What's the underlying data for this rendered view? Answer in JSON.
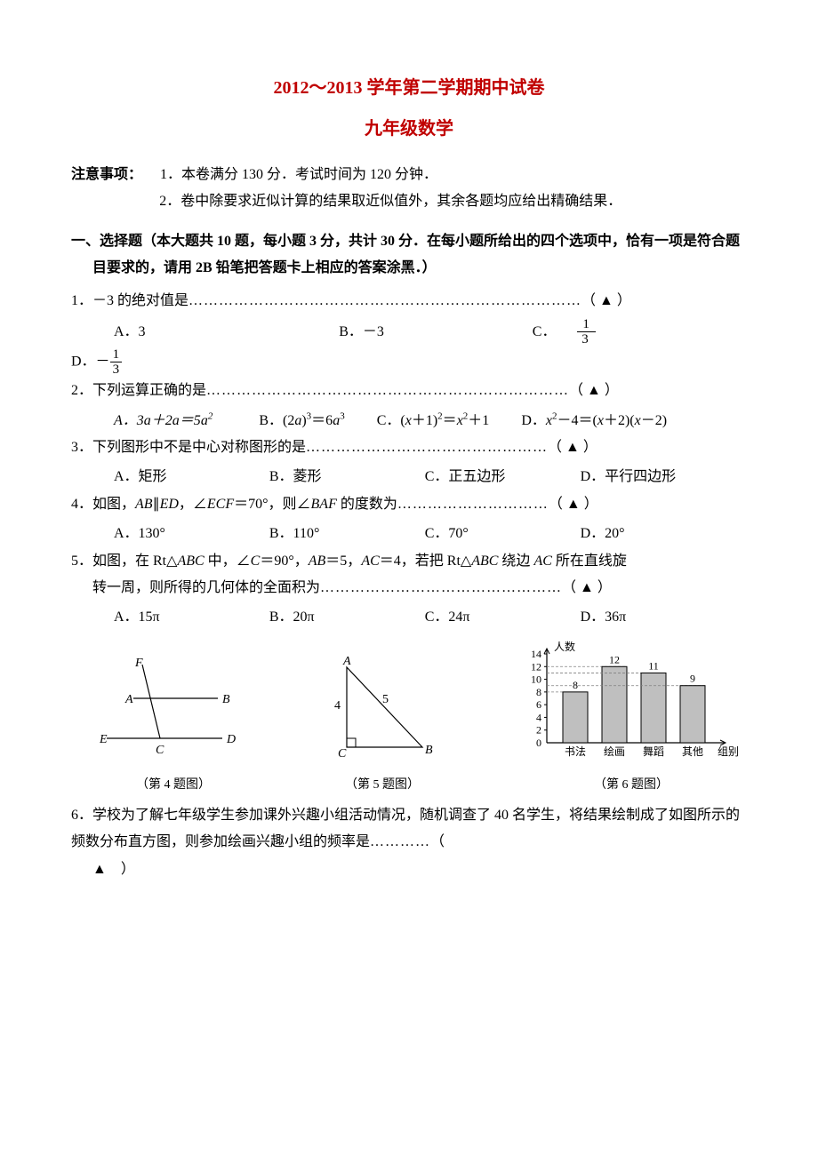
{
  "header": {
    "title1": "2012～2013 学年第二学期期中试卷",
    "title2": "九年级数学"
  },
  "notice": {
    "label": "注意事项：",
    "line1": "1．本卷满分 130 分．考试时间为 120 分钟．",
    "line2": "2．卷中除要求近似计算的结果取近似值外，其余各题均应给出精确结果．"
  },
  "section1": {
    "header": "一、选择题（本大题共 10 题，每小题 3 分，共计 30 分．在每小题所给出的四个选项中，恰有一项是符合题目要求的，请用 2B 铅笔把答题卡上相应的答案涂黑．）"
  },
  "q1": {
    "stem_pre": "1．－3 的绝对值是",
    "dots": "……………………………………………………………………",
    "tail": "（  ▲  ）",
    "optA": "A．3",
    "optB": "B．－3",
    "optC_pre": "C．",
    "optD_pre": "D．－"
  },
  "q2": {
    "stem_pre": "2．下列运算正确的是",
    "dots": "………………………………………………………………",
    "tail": "（  ▲  ）",
    "line2": "A．3a＋2a＝5a²　　　B．(2a)³＝6a³　　C．(x＋1)²＝x²＋1　　D．x²－4＝(x＋2)(x－2)"
  },
  "q3": {
    "stem_pre": "3．下列图形中不是中心对称图形的是",
    "dots": "…………………………………………",
    "tail": "（  ▲  ）",
    "optA": "A．矩形",
    "optB": "B．菱形",
    "optC": "C．正五边形",
    "optD": "D．平行四边形"
  },
  "q4": {
    "stem": "4．如图，AB∥ED，∠ECF＝70°，则∠BAF 的度数为",
    "dots": "…………………………",
    "tail": "（  ▲  ）",
    "optA": "A．130°",
    "optB": "B．110°",
    "optC": "C．70°",
    "optD": "D．20°"
  },
  "q5": {
    "stem": "5．如图，在 Rt△ABC 中，∠C＝90°，AB＝5，AC＝4，若把 Rt△ABC 绕边 AC 所在直线旋转一周，则所得的几何体的全面积为",
    "dots": "…………………………………………",
    "tail": "（  ▲  ）",
    "optA": "A．15π",
    "optB": "B．20π",
    "optC": "C．24π",
    "optD": "D．36π"
  },
  "figures": {
    "cap4": "（第 4 题图）",
    "cap5": "（第 5 题图）",
    "cap6": "（第 6 题图）",
    "fig4_labels": {
      "F": "F",
      "A": "A",
      "B": "B",
      "E": "E",
      "C": "C",
      "D": "D"
    },
    "fig5_labels": {
      "A": "A",
      "B": "B",
      "C": "C",
      "side4": "4",
      "side5": "5"
    },
    "fig6": {
      "ylabel": "人数",
      "xlabel": "组别",
      "yticks": [
        "0",
        "2",
        "4",
        "6",
        "8",
        "10",
        "12",
        "14"
      ],
      "ymax": 14,
      "categories": [
        "书法",
        "绘画",
        "舞蹈",
        "其他"
      ],
      "values": [
        8,
        12,
        11,
        9
      ],
      "bar_fill": "#bfbfbf",
      "bar_stroke": "#000000",
      "axis_color": "#000000",
      "grid_color": "#808080",
      "background": "#ffffff",
      "font_size": 12
    }
  },
  "q6": {
    "stem": "6．学校为了解七年级学生参加课外兴趣小组活动情况，随机调查了 40 名学生，将结果绘制成了如图所示的频数分布直方图，则参加绘画兴趣小组的频率是",
    "dots": "…………",
    "tail": "（　▲　）"
  }
}
